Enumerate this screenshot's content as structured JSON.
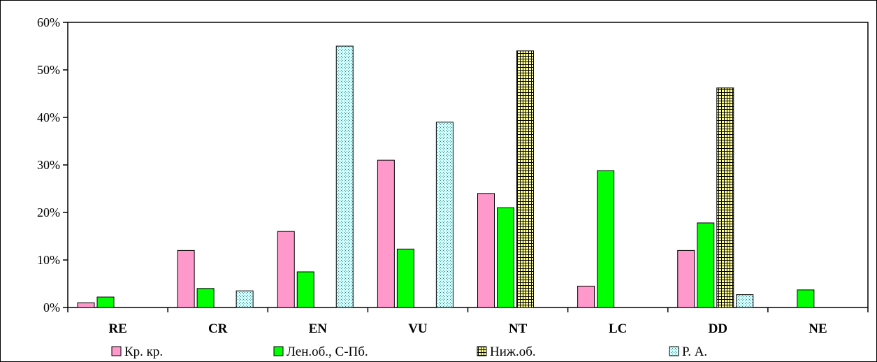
{
  "chart_data": {
    "type": "bar",
    "categories": [
      "RE",
      "CR",
      "EN",
      "VU",
      "NT",
      "LC",
      "DD",
      "NE"
    ],
    "series": [
      {
        "name": "Кр. кр.",
        "color": "#ff99cc",
        "pattern": "solid",
        "values": [
          1,
          12,
          16,
          31,
          24,
          4.5,
          12,
          0
        ]
      },
      {
        "name": "Лен.об., С-Пб.",
        "color": "#00ff00",
        "pattern": "solid",
        "values": [
          2.2,
          4,
          7.5,
          12.3,
          21,
          28.8,
          17.8,
          3.7
        ]
      },
      {
        "name": "Ниж.об.",
        "color": "#ffff99",
        "pattern": "grid",
        "values": [
          0,
          0,
          0,
          0,
          54,
          0,
          46.2,
          0
        ]
      },
      {
        "name": "Р. А.",
        "color": "#ccffff",
        "pattern": "dots",
        "values": [
          0,
          3.5,
          55,
          39,
          0,
          0,
          2.7,
          0
        ]
      }
    ],
    "y_ticks": [
      "0%",
      "10%",
      "20%",
      "30%",
      "40%",
      "50%",
      "60%"
    ],
    "ylim": [
      0,
      60
    ],
    "grid": false,
    "legend_position": "bottom"
  }
}
